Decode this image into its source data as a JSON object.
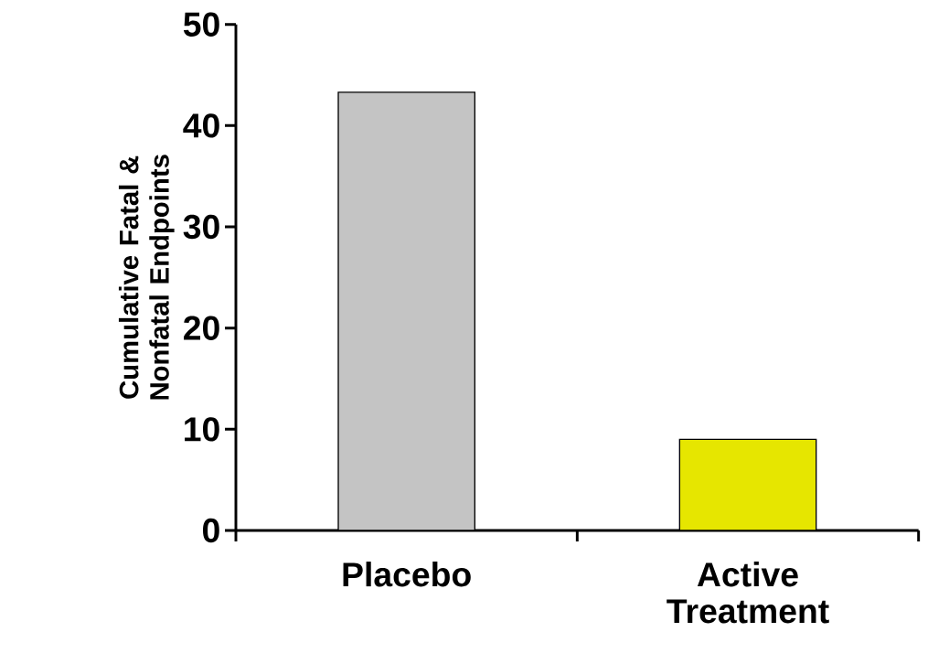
{
  "chart_data": {
    "type": "bar",
    "ylabel": "Cumulative Fatal & Nonfatal Endpoints",
    "categories": [
      "Placebo",
      "Active Treatment"
    ],
    "values": [
      43.3,
      9.0
    ],
    "colors": [
      "#c4c4c4",
      "#e6e600"
    ],
    "ylim": [
      0,
      50
    ],
    "yticks": [
      0,
      10,
      20,
      30,
      40,
      50
    ],
    "grid": false
  }
}
